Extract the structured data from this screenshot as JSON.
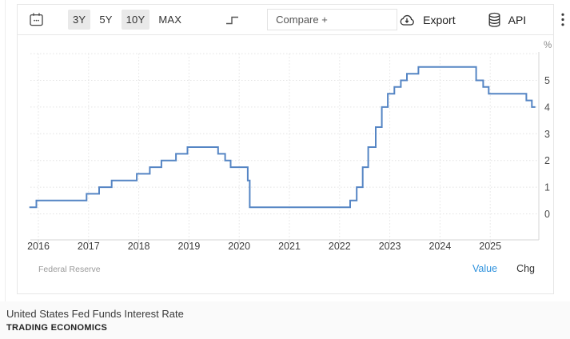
{
  "toolbar": {
    "range_buttons": [
      {
        "label": "3Y",
        "highlighted": true
      },
      {
        "label": "5Y",
        "highlighted": false
      },
      {
        "label": "10Y",
        "highlighted": true
      },
      {
        "label": "MAX",
        "highlighted": false
      }
    ],
    "compare_placeholder": "Compare +",
    "export_label": "Export",
    "api_label": "API",
    "icons": {
      "calendar": "calendar-icon",
      "step_line": "step-line-chart-icon",
      "export": "cloud-download-icon",
      "api": "database-icon",
      "menu": "kebab-menu-icon"
    }
  },
  "chart_data": {
    "type": "line",
    "step": true,
    "title": "United States Fed Funds Interest Rate",
    "xlabel": "",
    "ylabel": "%",
    "grid": true,
    "legend_position": "none",
    "line_color": "#5585c4",
    "xaxis": {
      "ticks": [
        2016,
        2017,
        2018,
        2019,
        2020,
        2021,
        2022,
        2023,
        2024,
        2025
      ],
      "range": [
        2015.8,
        2025.97
      ]
    },
    "yaxis": {
      "unit": "%",
      "labels": [
        0,
        1,
        2,
        3,
        4,
        5
      ],
      "gridlines": [
        0,
        1,
        2,
        3,
        4,
        5,
        6
      ],
      "range": [
        -1,
        6
      ]
    },
    "series": [
      {
        "name": "Fed Funds Interest Rate (%)",
        "x_end": 2025.9,
        "points": [
          [
            2015.82,
            0.25
          ],
          [
            2015.96,
            0.5
          ],
          [
            2016.96,
            0.75
          ],
          [
            2017.21,
            1.0
          ],
          [
            2017.46,
            1.25
          ],
          [
            2017.96,
            1.5
          ],
          [
            2018.22,
            1.75
          ],
          [
            2018.45,
            2.0
          ],
          [
            2018.74,
            2.25
          ],
          [
            2018.97,
            2.5
          ],
          [
            2019.58,
            2.25
          ],
          [
            2019.72,
            2.0
          ],
          [
            2019.83,
            1.75
          ],
          [
            2020.17,
            1.25
          ],
          [
            2020.21,
            0.25
          ],
          [
            2022.21,
            0.5
          ],
          [
            2022.34,
            1.0
          ],
          [
            2022.46,
            1.75
          ],
          [
            2022.57,
            2.5
          ],
          [
            2022.72,
            3.25
          ],
          [
            2022.84,
            4.0
          ],
          [
            2022.96,
            4.5
          ],
          [
            2023.09,
            4.75
          ],
          [
            2023.22,
            5.0
          ],
          [
            2023.34,
            5.25
          ],
          [
            2023.57,
            5.5
          ],
          [
            2024.72,
            5.0
          ],
          [
            2024.86,
            4.75
          ],
          [
            2024.97,
            4.5
          ],
          [
            2025.72,
            4.25
          ],
          [
            2025.83,
            4.0
          ]
        ]
      }
    ]
  },
  "footer": {
    "source": "Federal Reserve",
    "value_label": "Value",
    "chg_label": "Chg"
  },
  "caption": {
    "title": "United States Fed Funds Interest Rate",
    "brand": "TRADING ECONOMICS"
  }
}
